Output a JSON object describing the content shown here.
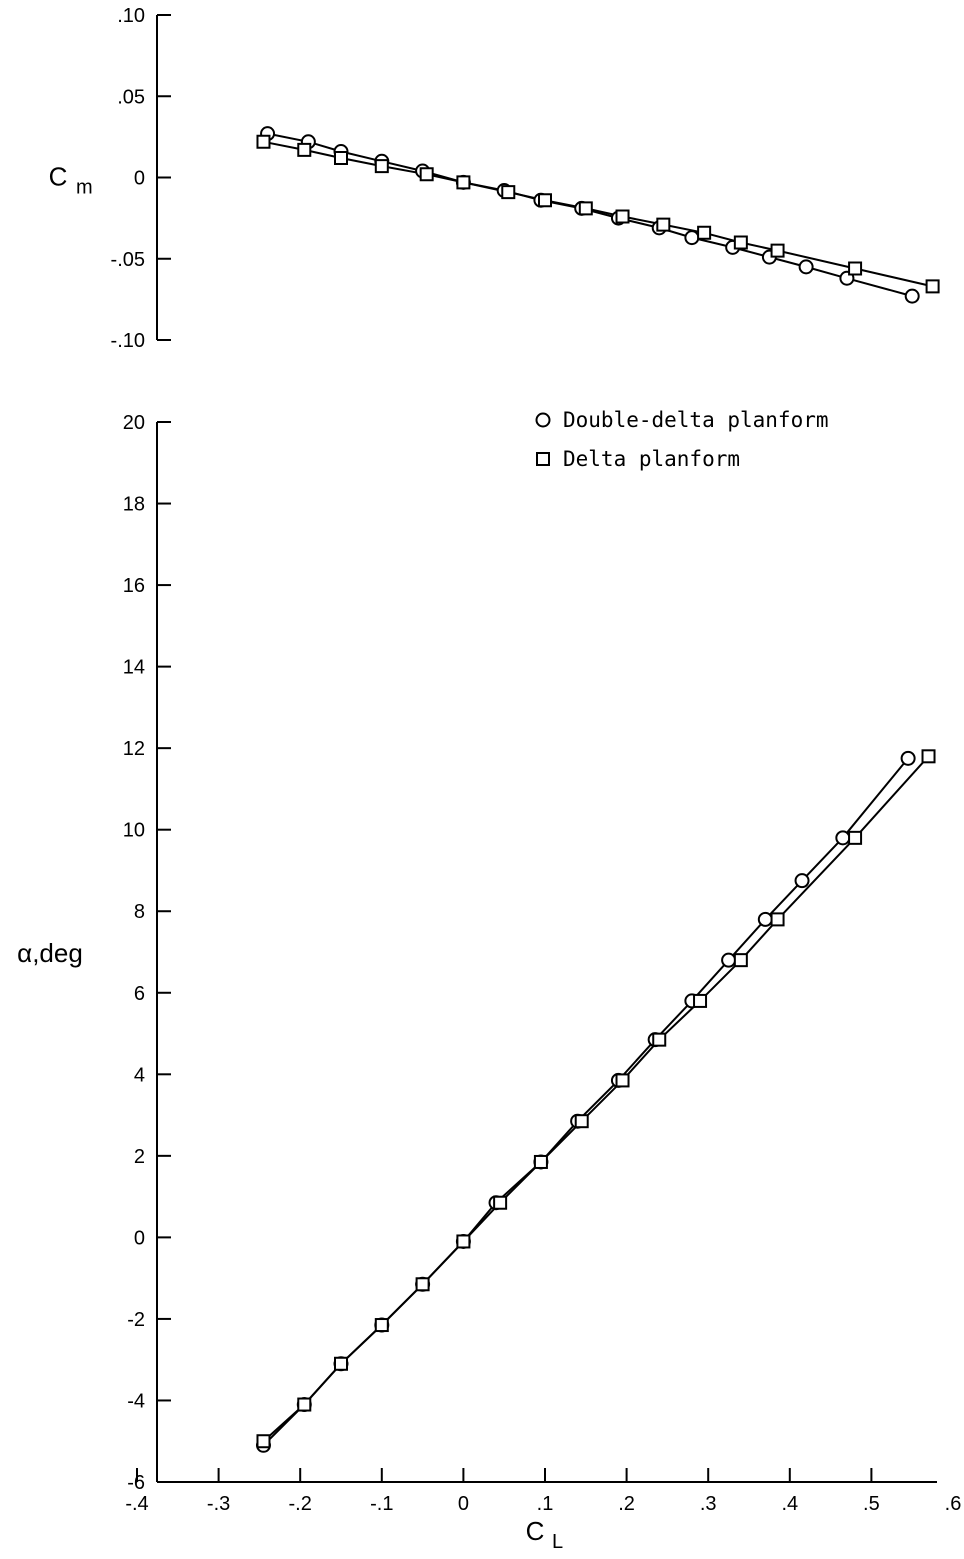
{
  "chart_data": [
    {
      "id": "cm",
      "type": "line",
      "ylabel": "C",
      "ylabel_sub": "m",
      "ylim": [
        -0.1,
        0.1
      ],
      "yticks": [
        0.1,
        0.05,
        0,
        -0.05,
        -0.1
      ],
      "ytick_labels": [
        ".10",
        ".05",
        "0",
        "-.05",
        "-.10"
      ],
      "xlim": [
        -0.4,
        0.6
      ],
      "series": [
        {
          "name": "Double-delta planform",
          "marker": "circle",
          "x": [
            -0.24,
            -0.19,
            -0.15,
            -0.1,
            -0.05,
            0.0,
            0.05,
            0.095,
            0.145,
            0.19,
            0.24,
            0.28,
            0.33,
            0.375,
            0.42,
            0.47,
            0.55
          ],
          "y": [
            0.027,
            0.022,
            0.016,
            0.01,
            0.004,
            -0.003,
            -0.008,
            -0.014,
            -0.019,
            -0.025,
            -0.031,
            -0.037,
            -0.043,
            -0.049,
            -0.055,
            -0.062,
            -0.073
          ]
        },
        {
          "name": "Delta planform",
          "marker": "square",
          "x": [
            -0.245,
            -0.195,
            -0.15,
            -0.1,
            -0.045,
            0.0,
            0.055,
            0.1,
            0.15,
            0.195,
            0.245,
            0.295,
            0.34,
            0.385,
            0.48,
            0.575
          ],
          "y": [
            0.022,
            0.017,
            0.012,
            0.007,
            0.002,
            -0.003,
            -0.009,
            -0.014,
            -0.019,
            -0.024,
            -0.029,
            -0.034,
            -0.04,
            -0.045,
            -0.056,
            -0.067
          ]
        }
      ]
    },
    {
      "id": "alpha",
      "type": "line",
      "ylabel": "α,deg",
      "xlabel": "C",
      "xlabel_sub": "L",
      "xlim": [
        -0.4,
        0.6
      ],
      "xticks": [
        -0.4,
        -0.3,
        -0.2,
        -0.1,
        0,
        0.1,
        0.2,
        0.3,
        0.4,
        0.5,
        0.6
      ],
      "xtick_labels": [
        "-.4",
        "-.3",
        "-.2",
        "-.1",
        "0",
        ".1",
        ".2",
        ".3",
        ".4",
        ".5",
        ".6"
      ],
      "ylim": [
        -6,
        20
      ],
      "yticks": [
        20,
        18,
        16,
        14,
        12,
        10,
        8,
        6,
        4,
        2,
        0,
        -2,
        -4,
        -6
      ],
      "ytick_labels": [
        "20",
        "18",
        "16",
        "14",
        "12",
        "10",
        "8",
        "6",
        "4",
        "2",
        "0",
        "-2",
        "-4",
        "-6"
      ],
      "legend": "top-right",
      "series": [
        {
          "name": "Double-delta planform",
          "marker": "circle",
          "x": [
            -0.245,
            -0.195,
            -0.15,
            -0.1,
            -0.05,
            0.0,
            0.04,
            0.095,
            0.14,
            0.19,
            0.235,
            0.28,
            0.325,
            0.37,
            0.415,
            0.465,
            0.545
          ],
          "y": [
            -5.1,
            -4.1,
            -3.1,
            -2.15,
            -1.15,
            -0.1,
            0.85,
            1.85,
            2.85,
            3.85,
            4.85,
            5.8,
            6.8,
            7.8,
            8.75,
            9.8,
            11.75
          ]
        },
        {
          "name": "Delta planform",
          "marker": "square",
          "x": [
            -0.245,
            -0.195,
            -0.15,
            -0.1,
            -0.05,
            0.0,
            0.045,
            0.095,
            0.145,
            0.195,
            0.24,
            0.29,
            0.34,
            0.385,
            0.48,
            0.57
          ],
          "y": [
            -5.0,
            -4.1,
            -3.1,
            -2.15,
            -1.15,
            -0.1,
            0.85,
            1.85,
            2.85,
            3.85,
            4.85,
            5.8,
            6.8,
            7.8,
            9.8,
            11.8
          ]
        }
      ]
    }
  ]
}
